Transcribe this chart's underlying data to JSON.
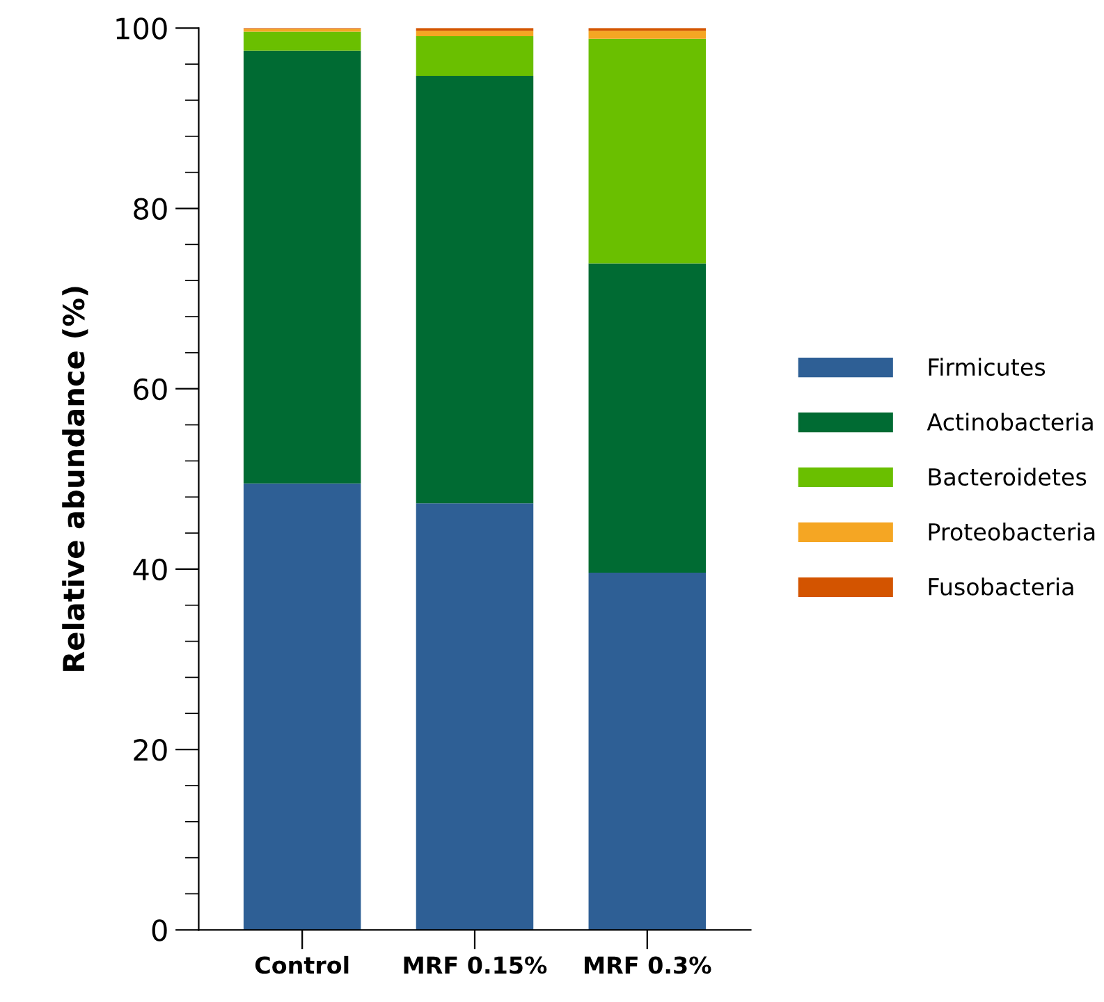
{
  "chart_data": {
    "type": "bar",
    "stacked": true,
    "ylabel": "Relative abundance (%)",
    "categories": [
      "Control",
      "MRF 0.15%",
      "MRF 0.3%"
    ],
    "series": [
      {
        "name": "Firmicutes",
        "color": "#2e5f95",
        "values": [
          49.5,
          47.3,
          39.6
        ]
      },
      {
        "name": "Actinobacteria",
        "color": "#006b33",
        "values": [
          48.0,
          47.4,
          34.3
        ]
      },
      {
        "name": "Bacteroidetes",
        "color": "#6abf00",
        "values": [
          2.1,
          4.4,
          24.9
        ]
      },
      {
        "name": "Proteobacteria",
        "color": "#f5a623",
        "values": [
          0.3,
          0.6,
          0.9
        ]
      },
      {
        "name": "Fusobacteria",
        "color": "#d35400",
        "values": [
          0.1,
          0.3,
          0.3
        ]
      }
    ],
    "ylim": [
      0,
      100
    ],
    "yticks": [
      0,
      20,
      40,
      60,
      80,
      100
    ],
    "grid": false,
    "legend": "right"
  }
}
